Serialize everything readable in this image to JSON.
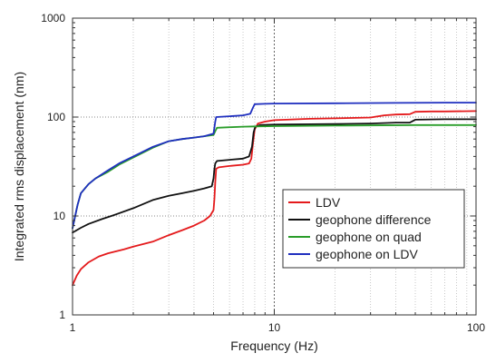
{
  "chart_data": {
    "type": "line",
    "title": "",
    "xlabel": "Frequency (Hz)",
    "ylabel": "Integrated rms displacement (nm)",
    "xscale": "log",
    "yscale": "log",
    "xlim": [
      1,
      100
    ],
    "ylim": [
      1,
      1000
    ],
    "x_ticks": [
      1,
      10,
      100
    ],
    "y_ticks": [
      1,
      10,
      100,
      1000
    ],
    "x_tick_labels": [
      "1",
      "10",
      "100"
    ],
    "y_tick_labels": [
      "1",
      "10",
      "100",
      "1000"
    ],
    "grid": true,
    "grid_style": "dotted",
    "legend_position": "center-right",
    "series": [
      {
        "name": "LDV",
        "color": "#e41a1c",
        "points": [
          [
            1,
            2.0
          ],
          [
            1.05,
            2.5
          ],
          [
            1.1,
            2.9
          ],
          [
            1.2,
            3.4
          ],
          [
            1.35,
            3.9
          ],
          [
            1.5,
            4.2
          ],
          [
            1.8,
            4.6
          ],
          [
            2,
            4.9
          ],
          [
            2.5,
            5.5
          ],
          [
            3,
            6.4
          ],
          [
            3.5,
            7.2
          ],
          [
            4,
            8.0
          ],
          [
            4.5,
            9.0
          ],
          [
            4.8,
            10.0
          ],
          [
            5.0,
            11.5
          ],
          [
            5.05,
            15
          ],
          [
            5.1,
            22
          ],
          [
            5.15,
            30
          ],
          [
            5.3,
            31
          ],
          [
            6,
            32
          ],
          [
            7,
            33
          ],
          [
            7.5,
            34
          ],
          [
            7.7,
            38
          ],
          [
            7.85,
            55
          ],
          [
            8,
            75
          ],
          [
            8.3,
            86
          ],
          [
            9,
            90
          ],
          [
            10,
            93
          ],
          [
            15,
            96
          ],
          [
            20,
            97
          ],
          [
            30,
            99
          ],
          [
            35,
            104
          ],
          [
            40,
            106
          ],
          [
            47,
            107
          ],
          [
            50,
            113
          ],
          [
            60,
            114
          ],
          [
            70,
            114
          ],
          [
            100,
            115
          ]
        ]
      },
      {
        "name": "geophone difference",
        "color": "#111111",
        "points": [
          [
            1,
            6.8
          ],
          [
            1.1,
            7.6
          ],
          [
            1.2,
            8.3
          ],
          [
            1.4,
            9.3
          ],
          [
            1.6,
            10.2
          ],
          [
            2,
            12
          ],
          [
            2.5,
            14.5
          ],
          [
            3,
            16
          ],
          [
            3.5,
            17
          ],
          [
            4,
            18
          ],
          [
            4.5,
            19
          ],
          [
            4.9,
            20
          ],
          [
            5.0,
            24
          ],
          [
            5.05,
            30
          ],
          [
            5.1,
            34
          ],
          [
            5.2,
            36
          ],
          [
            6,
            37
          ],
          [
            7,
            38
          ],
          [
            7.5,
            40
          ],
          [
            7.75,
            50
          ],
          [
            7.9,
            70
          ],
          [
            8.05,
            80
          ],
          [
            8.5,
            83
          ],
          [
            10,
            84
          ],
          [
            20,
            85
          ],
          [
            30,
            86
          ],
          [
            40,
            88
          ],
          [
            47,
            88
          ],
          [
            50,
            94
          ],
          [
            70,
            95
          ],
          [
            100,
            95
          ]
        ]
      },
      {
        "name": "geophone on quad",
        "color": "#2a9d2a",
        "points": [
          [
            1,
            7.5
          ],
          [
            1.03,
            10
          ],
          [
            1.06,
            13
          ],
          [
            1.1,
            17
          ],
          [
            1.2,
            21
          ],
          [
            1.3,
            24
          ],
          [
            1.5,
            28
          ],
          [
            1.7,
            33
          ],
          [
            2,
            39
          ],
          [
            2.5,
            49
          ],
          [
            3,
            57
          ],
          [
            3.5,
            60
          ],
          [
            4,
            62
          ],
          [
            4.5,
            64
          ],
          [
            5,
            66
          ],
          [
            5.1,
            72
          ],
          [
            5.2,
            78
          ],
          [
            6,
            79
          ],
          [
            7,
            80
          ],
          [
            8,
            80.5
          ],
          [
            10,
            81
          ],
          [
            20,
            82
          ],
          [
            50,
            83
          ],
          [
            100,
            83
          ]
        ]
      },
      {
        "name": "geophone on LDV",
        "color": "#1f2fbf",
        "points": [
          [
            1,
            7.5
          ],
          [
            1.03,
            10
          ],
          [
            1.06,
            13
          ],
          [
            1.1,
            17
          ],
          [
            1.2,
            21
          ],
          [
            1.3,
            24
          ],
          [
            1.5,
            29
          ],
          [
            1.7,
            34
          ],
          [
            2,
            40
          ],
          [
            2.5,
            50
          ],
          [
            3,
            57
          ],
          [
            3.5,
            60
          ],
          [
            4,
            62
          ],
          [
            4.5,
            64
          ],
          [
            5,
            68
          ],
          [
            5.1,
            90
          ],
          [
            5.15,
            100
          ],
          [
            6,
            102
          ],
          [
            7,
            104
          ],
          [
            7.6,
            108
          ],
          [
            7.85,
            125
          ],
          [
            8,
            135
          ],
          [
            9,
            136
          ],
          [
            10,
            137
          ],
          [
            20,
            138
          ],
          [
            40,
            139
          ],
          [
            70,
            140
          ],
          [
            100,
            140
          ]
        ]
      }
    ]
  }
}
